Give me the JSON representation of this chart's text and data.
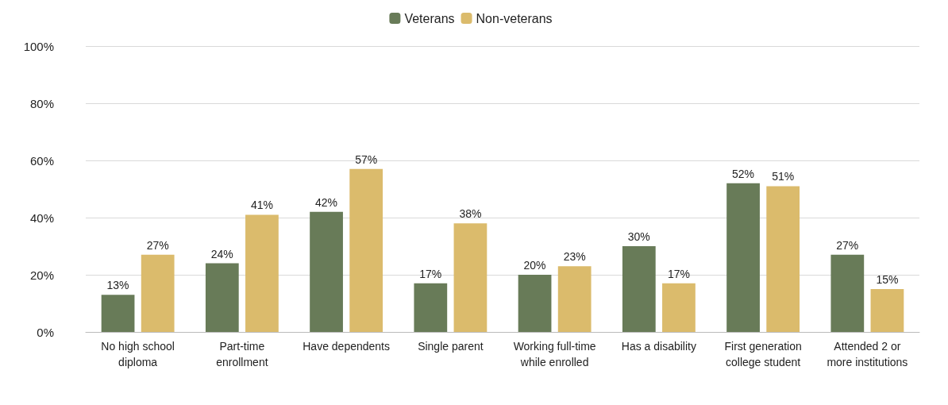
{
  "chart_data": {
    "type": "bar",
    "categories": [
      "No high school\ndiploma",
      "Part-time\nenrollment",
      "Have dependents",
      "Single parent",
      "Working full-time\nwhile enrolled",
      "Has a disability",
      "First generation\ncollege student",
      "Attended 2 or\nmore institutions"
    ],
    "series": [
      {
        "name": "Veterans",
        "color": "#687b58",
        "values": [
          13,
          24,
          42,
          17,
          20,
          30,
          52,
          27
        ],
        "value_labels": [
          "13%",
          "24%",
          "42%",
          "17%",
          "20%",
          "30%",
          "52%",
          "27%"
        ]
      },
      {
        "name": "Non-veterans",
        "color": "#dbbb6c",
        "values": [
          27,
          41,
          57,
          38,
          23,
          17,
          51,
          15
        ],
        "value_labels": [
          "27%",
          "41%",
          "57%",
          "38%",
          "23%",
          "17%",
          "51%",
          "15%"
        ]
      }
    ],
    "ylim": [
      0,
      100
    ],
    "yticks": [
      {
        "value": 0,
        "label": "0%"
      },
      {
        "value": 20,
        "label": "20%"
      },
      {
        "value": 40,
        "label": "40%"
      },
      {
        "value": 60,
        "label": "60%"
      },
      {
        "value": 80,
        "label": "80%"
      },
      {
        "value": 100,
        "label": "100%"
      }
    ],
    "grid": "y",
    "legend": "top"
  }
}
